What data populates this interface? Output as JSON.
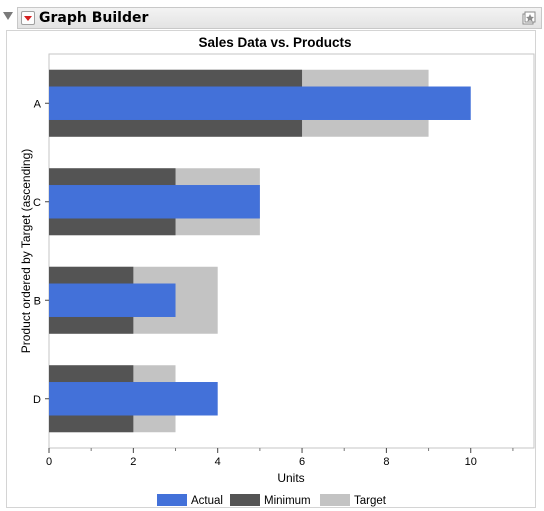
{
  "window": {
    "title": "Graph Builder"
  },
  "chart_data": {
    "type": "bar",
    "title": "Sales Data vs. Products",
    "xlabel": "Units",
    "ylabel": "Product ordered by Target (ascending)",
    "orientation": "horizontal",
    "categories": [
      "A",
      "C",
      "B",
      "D"
    ],
    "series": [
      {
        "name": "Actual",
        "values": [
          10,
          5,
          3,
          4
        ],
        "color": "#4371d9"
      },
      {
        "name": "Minimum",
        "values": [
          6,
          3,
          2,
          2
        ],
        "color": "#545454"
      },
      {
        "name": "Target",
        "values": [
          9,
          5,
          4,
          3
        ],
        "color": "#c3c3c3"
      }
    ],
    "xlim": [
      0,
      11.5
    ],
    "xticks": [
      0,
      2,
      4,
      6,
      8,
      10
    ],
    "grid": false,
    "legend_position": "bottom"
  }
}
